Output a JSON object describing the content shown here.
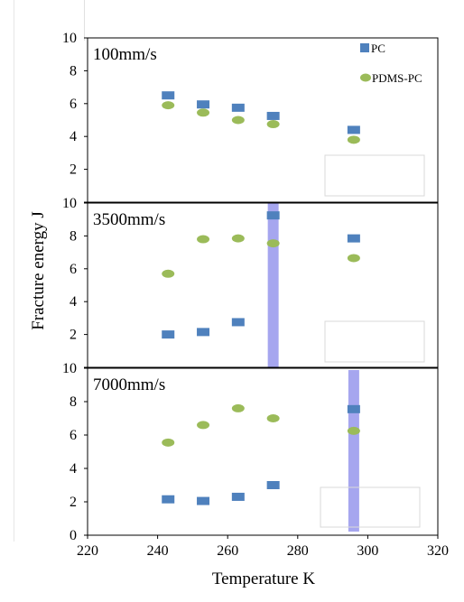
{
  "chart_data": {
    "type": "scatter",
    "xlabel": "Temperature K",
    "ylabel": "Fracture energy   J",
    "xlim": [
      220,
      320
    ],
    "ylim": [
      0,
      10
    ],
    "x_ticks": [
      "220",
      "240",
      "260",
      "280",
      "300",
      "320"
    ],
    "y_ticks": [
      "0",
      "2",
      "4",
      "6",
      "8",
      "10"
    ],
    "grid": false,
    "legend_position": "top-right",
    "colors": {
      "PC": "#4F81BD",
      "PDMS-PC": "#9BBB59",
      "highlight": "#8080E8"
    },
    "legend": [
      {
        "name": "PC",
        "marker": "square"
      },
      {
        "name": "PDMS-PC",
        "marker": "circle"
      }
    ],
    "panels": [
      {
        "title": "100mm/s",
        "series": [
          {
            "name": "PC",
            "x": [
              243,
              253,
              263,
              273,
              296
            ],
            "y": [
              6.5,
              5.95,
              5.75,
              5.25,
              4.4
            ]
          },
          {
            "name": "PDMS-PC",
            "x": [
              243,
              253,
              263,
              273,
              296
            ],
            "y": [
              5.9,
              5.45,
              5.0,
              4.75,
              3.8
            ]
          }
        ]
      },
      {
        "title": "3500mm/s",
        "series": [
          {
            "name": "PC",
            "x": [
              243,
              253,
              263,
              273,
              296
            ],
            "y": [
              2.0,
              2.15,
              2.75,
              9.25,
              7.85
            ]
          },
          {
            "name": "PDMS-PC",
            "x": [
              243,
              253,
              263,
              273,
              296
            ],
            "y": [
              5.7,
              7.8,
              7.85,
              7.55,
              6.65
            ]
          }
        ],
        "highlight_band": {
          "x": 273,
          "ymin": 0,
          "ymax": 10
        }
      },
      {
        "title": "7000mm/s",
        "series": [
          {
            "name": "PC",
            "x": [
              243,
              253,
              263,
              273,
              296
            ],
            "y": [
              2.15,
              2.05,
              2.3,
              3.0,
              7.55
            ]
          },
          {
            "name": "PDMS-PC",
            "x": [
              243,
              253,
              263,
              273,
              296
            ],
            "y": [
              5.55,
              6.6,
              7.6,
              7.0,
              6.25
            ]
          }
        ],
        "highlight_band": {
          "x": 296,
          "ymin": 0,
          "ymax": 10
        }
      }
    ]
  }
}
